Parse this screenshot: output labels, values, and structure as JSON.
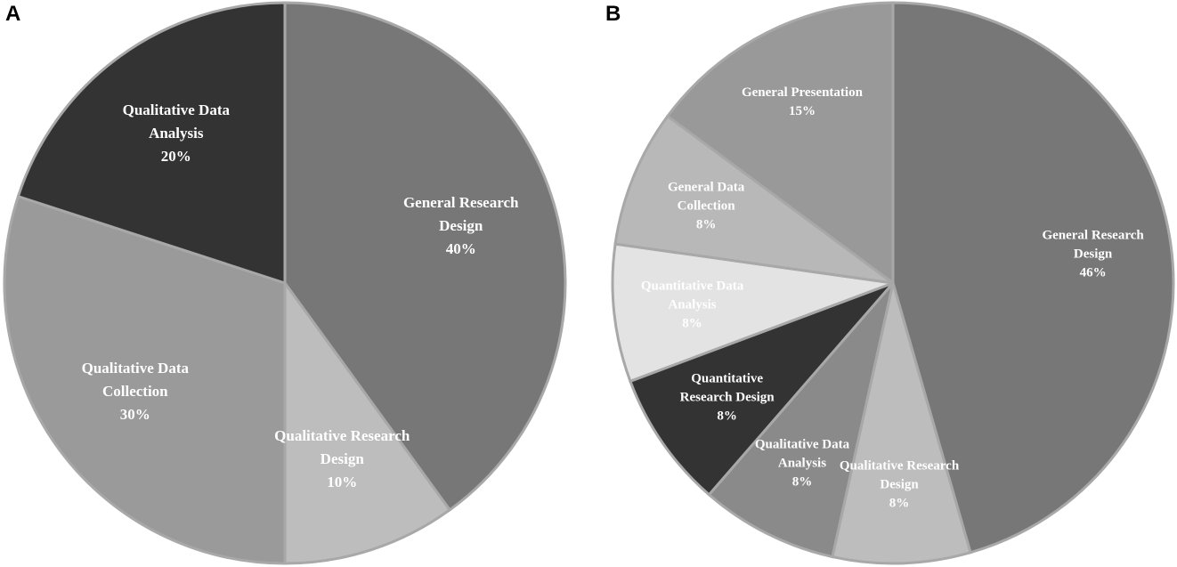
{
  "chart_data": [
    {
      "type": "pie",
      "label": "A",
      "categories": [
        "General Research Design",
        "Qualitative Research Design",
        "Qualitative Data Collection",
        "Qualitative Data Analysis"
      ],
      "values": [
        40,
        10,
        30,
        20
      ],
      "value_labels": [
        "40%",
        "10%",
        "30%",
        "20%"
      ],
      "colors": [
        "#777777",
        "#bdbdbd",
        "#9a9a9a",
        "#333333"
      ]
    },
    {
      "type": "pie",
      "label": "B",
      "categories": [
        "General Research Design",
        "Qualitative Research Design",
        "Qualitative Data Analysis",
        "Quantitative Research Design",
        "Quantitative Data Analysis",
        "General Data Collection",
        "General Presentation"
      ],
      "values": [
        46,
        8,
        8,
        8,
        8,
        8,
        15
      ],
      "value_labels": [
        "46%",
        "8%",
        "8%",
        "8%",
        "8%",
        "8%",
        "15%"
      ],
      "colors": [
        "#777777",
        "#bdbdbd",
        "#8a8a8a",
        "#333333",
        "#e3e3e3",
        "#b8b8b8",
        "#999999"
      ]
    }
  ]
}
